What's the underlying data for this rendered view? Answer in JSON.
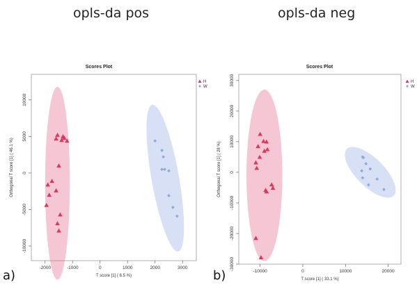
{
  "page": {
    "title_left": "opls-da pos",
    "title_right": "opls-da neg",
    "label_a": "a)",
    "label_b": "b)"
  },
  "colors": {
    "group_H": "#d83a5e",
    "group_H_ellipse": "#f2b3c6",
    "group_W": "#8fa8da",
    "group_W_ellipse": "#c9d6f0"
  },
  "chart_data": [
    {
      "type": "scatter",
      "title": "Scores Plot",
      "xlabel": "T score [1] ( 6.5 %)",
      "ylabel": "Orthogonal T score [1] ( 46.1 %)",
      "xlim": [
        -2500,
        3500
      ],
      "ylim": [
        -12000,
        13500
      ],
      "xticks": [
        -2000,
        -1000,
        0,
        1000,
        2000,
        3000
      ],
      "yticks": [
        -10000,
        -5000,
        0,
        5000,
        10000
      ],
      "legend_position": "top-right",
      "grid": false,
      "series": [
        {
          "name": "H",
          "marker": "triangle",
          "points": [
            [
              -1550,
              5200
            ],
            [
              -1350,
              5000
            ],
            [
              -1600,
              4700
            ],
            [
              -1400,
              4500
            ],
            [
              -1200,
              4400
            ],
            [
              -1300,
              4800
            ],
            [
              -1500,
              1000
            ],
            [
              -1750,
              -1100
            ],
            [
              -1900,
              -1600
            ],
            [
              -1600,
              -2400
            ],
            [
              -1850,
              -3000
            ],
            [
              -1950,
              -4400
            ],
            [
              -1450,
              -5700
            ],
            [
              -1550,
              -6900
            ],
            [
              -1500,
              -7900
            ]
          ],
          "ellipse": {
            "cx": -1550,
            "cy": -1400,
            "rx": 450,
            "ry": 13200,
            "angle_deg": 0
          }
        },
        {
          "name": "W",
          "marker": "diamond",
          "points": [
            [
              2000,
              4400
            ],
            [
              2250,
              3100
            ],
            [
              2300,
              2200
            ],
            [
              2250,
              500
            ],
            [
              2350,
              500
            ],
            [
              2500,
              300
            ],
            [
              2500,
              -3100
            ],
            [
              2650,
              -4700
            ],
            [
              2800,
              -5900
            ]
          ],
          "ellipse": {
            "cx": 2370,
            "cy": -700,
            "rx": 500,
            "ry": 10200,
            "angle_deg": -10
          }
        }
      ]
    },
    {
      "type": "scatter",
      "title": "Scores Plot",
      "xlabel": "T score [1] ( 33.1 %)",
      "ylabel": "Orthogonal T score [1] ( 28 %)",
      "xlim": [
        -15000,
        23000
      ],
      "ylim": [
        -30000,
        32000
      ],
      "xticks": [
        -10000,
        0,
        10000,
        20000
      ],
      "yticks": [
        -30000,
        -20000,
        -10000,
        0,
        10000,
        20000,
        30000
      ],
      "legend_position": "top-right",
      "grid": false,
      "series": [
        {
          "name": "H",
          "marker": "triangle",
          "points": [
            [
              -10000,
              12500
            ],
            [
              -9200,
              10200
            ],
            [
              -8500,
              10000
            ],
            [
              -10500,
              8500
            ],
            [
              -8300,
              7500
            ],
            [
              -9000,
              7000
            ],
            [
              -10100,
              5000
            ],
            [
              -11000,
              3200
            ],
            [
              -10800,
              1400
            ],
            [
              -7300,
              -4000
            ],
            [
              -7000,
              -5100
            ],
            [
              -8700,
              -5800
            ],
            [
              -8500,
              -6300
            ],
            [
              -11000,
              -21500
            ],
            [
              -9800,
              -27800
            ]
          ],
          "ellipse": {
            "cx": -9000,
            "cy": -1000,
            "rx": 4200,
            "ry": 28000,
            "angle_deg": 0
          }
        },
        {
          "name": "W",
          "marker": "diamond",
          "points": [
            [
              14000,
              5000
            ],
            [
              14200,
              4800
            ],
            [
              14800,
              2800
            ],
            [
              13800,
              500
            ],
            [
              15800,
              1100
            ],
            [
              14000,
              -1800
            ],
            [
              17400,
              -2200
            ],
            [
              15400,
              -4100
            ],
            [
              19000,
              -5600
            ]
          ],
          "ellipse": {
            "cx": 15800,
            "cy": 0,
            "rx": 3300,
            "ry": 10800,
            "angle_deg": -45
          }
        }
      ]
    }
  ]
}
